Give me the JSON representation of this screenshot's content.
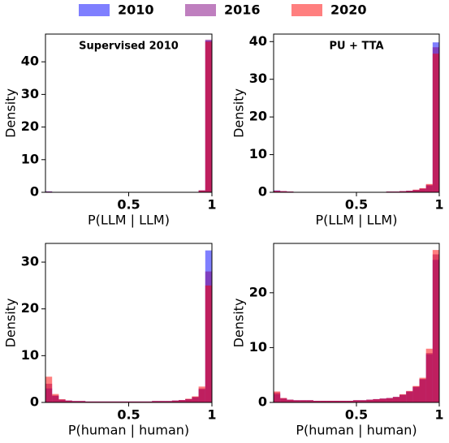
{
  "chart_data": [
    {
      "type": "histogram",
      "title": "Supervised 2010",
      "xlabel": "P(LLM | LLM)",
      "ylabel": "Density",
      "bins": [
        0,
        0.04,
        0.08,
        0.12,
        0.16,
        0.2,
        0.24,
        0.28,
        0.32,
        0.36,
        0.4,
        0.44,
        0.48,
        0.52,
        0.56,
        0.6,
        0.64,
        0.68,
        0.72,
        0.76,
        0.8,
        0.84,
        0.88,
        0.92,
        0.96,
        1
      ],
      "xlim": [
        0,
        1
      ],
      "xticks": [
        0.5,
        1
      ],
      "ylim": [
        0,
        48.5
      ],
      "yticks": [
        0,
        10,
        20,
        30,
        40
      ],
      "alpha": 0.5,
      "series": [
        {
          "name": "2010",
          "color": "#0000ff",
          "values": [
            0.3,
            0,
            0,
            0,
            0,
            0,
            0,
            0,
            0,
            0,
            0,
            0,
            0,
            0,
            0,
            0,
            0,
            0,
            0,
            0,
            0,
            0,
            0.1,
            0.6,
            46.5
          ]
        },
        {
          "name": "2016",
          "color": "#800080",
          "values": [
            0.2,
            0,
            0,
            0,
            0,
            0,
            0,
            0,
            0,
            0,
            0,
            0,
            0,
            0,
            0,
            0,
            0,
            0,
            0,
            0,
            0,
            0,
            0.1,
            0.5,
            46.8
          ]
        },
        {
          "name": "2020",
          "color": "#ff0000",
          "values": [
            0.2,
            0,
            0,
            0,
            0,
            0,
            0,
            0,
            0,
            0,
            0,
            0,
            0,
            0,
            0,
            0,
            0,
            0,
            0,
            0,
            0,
            0,
            0.1,
            0.6,
            46.2
          ]
        }
      ]
    },
    {
      "type": "histogram",
      "title": "PU + TTA",
      "xlabel": "P(LLM | LLM)",
      "ylabel": "Density",
      "bins": [
        0,
        0.04,
        0.08,
        0.12,
        0.16,
        0.2,
        0.24,
        0.28,
        0.32,
        0.36,
        0.4,
        0.44,
        0.48,
        0.52,
        0.56,
        0.6,
        0.64,
        0.68,
        0.72,
        0.76,
        0.8,
        0.84,
        0.88,
        0.92,
        0.96,
        1
      ],
      "xlim": [
        0,
        1
      ],
      "xticks": [
        0.5,
        1
      ],
      "ylim": [
        0,
        42
      ],
      "yticks": [
        0,
        10,
        20,
        30,
        40
      ],
      "alpha": 0.5,
      "series": [
        {
          "color": "#0000ff",
          "values": [
            0.5,
            0.3,
            0.2,
            0.1,
            0.1,
            0.1,
            0.1,
            0.1,
            0.1,
            0.1,
            0.1,
            0.1,
            0.1,
            0.1,
            0.1,
            0.1,
            0.1,
            0.2,
            0.2,
            0.3,
            0.4,
            0.6,
            0.9,
            1.8,
            39.8
          ]
        },
        {
          "color": "#800080",
          "values": [
            0.4,
            0.3,
            0.2,
            0.1,
            0.1,
            0.1,
            0.1,
            0.1,
            0.1,
            0.1,
            0.1,
            0.1,
            0.1,
            0.1,
            0.1,
            0.1,
            0.1,
            0.2,
            0.2,
            0.3,
            0.4,
            0.6,
            1.0,
            2.0,
            38.5
          ]
        },
        {
          "color": "#ff0000",
          "values": [
            0.4,
            0.3,
            0.2,
            0.1,
            0.1,
            0.1,
            0.1,
            0.1,
            0.1,
            0.1,
            0.1,
            0.1,
            0.1,
            0.1,
            0.1,
            0.1,
            0.1,
            0.2,
            0.2,
            0.3,
            0.4,
            0.7,
            1.1,
            2.2,
            36.8
          ]
        }
      ]
    },
    {
      "type": "histogram",
      "xlabel": "P(human | human)",
      "ylabel": "Density",
      "bins": [
        0,
        0.04,
        0.08,
        0.12,
        0.16,
        0.2,
        0.24,
        0.28,
        0.32,
        0.36,
        0.4,
        0.44,
        0.48,
        0.52,
        0.56,
        0.6,
        0.64,
        0.68,
        0.72,
        0.76,
        0.8,
        0.84,
        0.88,
        0.92,
        0.96,
        1
      ],
      "xlim": [
        0,
        1
      ],
      "xticks": [
        0.5,
        1
      ],
      "ylim": [
        0,
        34
      ],
      "yticks": [
        0,
        10,
        20,
        30
      ],
      "alpha": 0.5,
      "series": [
        {
          "color": "#0000ff",
          "values": [
            3.0,
            1.4,
            0.6,
            0.4,
            0.3,
            0.3,
            0.2,
            0.2,
            0.2,
            0.2,
            0.2,
            0.2,
            0.2,
            0.2,
            0.2,
            0.2,
            0.3,
            0.3,
            0.3,
            0.4,
            0.5,
            0.7,
            1.1,
            2.8,
            32.5
          ]
        },
        {
          "color": "#800080",
          "values": [
            4.0,
            1.5,
            0.6,
            0.4,
            0.3,
            0.3,
            0.2,
            0.2,
            0.2,
            0.2,
            0.2,
            0.2,
            0.2,
            0.2,
            0.2,
            0.2,
            0.3,
            0.3,
            0.3,
            0.4,
            0.5,
            0.7,
            1.2,
            3.0,
            28.0
          ]
        },
        {
          "color": "#ff0000",
          "values": [
            5.5,
            1.8,
            0.7,
            0.4,
            0.3,
            0.3,
            0.2,
            0.2,
            0.2,
            0.2,
            0.2,
            0.2,
            0.2,
            0.2,
            0.2,
            0.2,
            0.3,
            0.3,
            0.3,
            0.4,
            0.5,
            0.8,
            1.3,
            3.4,
            25.0
          ]
        }
      ]
    },
    {
      "type": "histogram",
      "xlabel": "P(human | human)",
      "ylabel": "Density",
      "bins": [
        0,
        0.04,
        0.08,
        0.12,
        0.16,
        0.2,
        0.24,
        0.28,
        0.32,
        0.36,
        0.4,
        0.44,
        0.48,
        0.52,
        0.56,
        0.6,
        0.64,
        0.68,
        0.72,
        0.76,
        0.8,
        0.84,
        0.88,
        0.92,
        0.96,
        1
      ],
      "xlim": [
        0,
        1
      ],
      "xticks": [
        0.5,
        1
      ],
      "ylim": [
        0,
        29
      ],
      "yticks": [
        0,
        10,
        20
      ],
      "alpha": 0.5,
      "series": [
        {
          "color": "#0000ff",
          "values": [
            1.5,
            0.7,
            0.5,
            0.4,
            0.4,
            0.4,
            0.3,
            0.3,
            0.3,
            0.3,
            0.3,
            0.3,
            0.4,
            0.4,
            0.5,
            0.6,
            0.7,
            0.8,
            1.0,
            1.4,
            2.0,
            2.8,
            4.2,
            8.8,
            26.0
          ]
        },
        {
          "color": "#800080",
          "values": [
            1.8,
            0.8,
            0.5,
            0.4,
            0.4,
            0.4,
            0.3,
            0.3,
            0.3,
            0.3,
            0.3,
            0.3,
            0.4,
            0.4,
            0.5,
            0.6,
            0.7,
            0.8,
            1.0,
            1.4,
            2.0,
            2.9,
            4.3,
            9.0,
            27.0
          ]
        },
        {
          "color": "#ff0000",
          "values": [
            2.0,
            0.8,
            0.5,
            0.4,
            0.4,
            0.4,
            0.3,
            0.3,
            0.3,
            0.3,
            0.3,
            0.3,
            0.4,
            0.4,
            0.5,
            0.6,
            0.7,
            0.8,
            1.0,
            1.5,
            2.1,
            3.0,
            4.5,
            9.8,
            27.8
          ]
        }
      ]
    }
  ]
}
